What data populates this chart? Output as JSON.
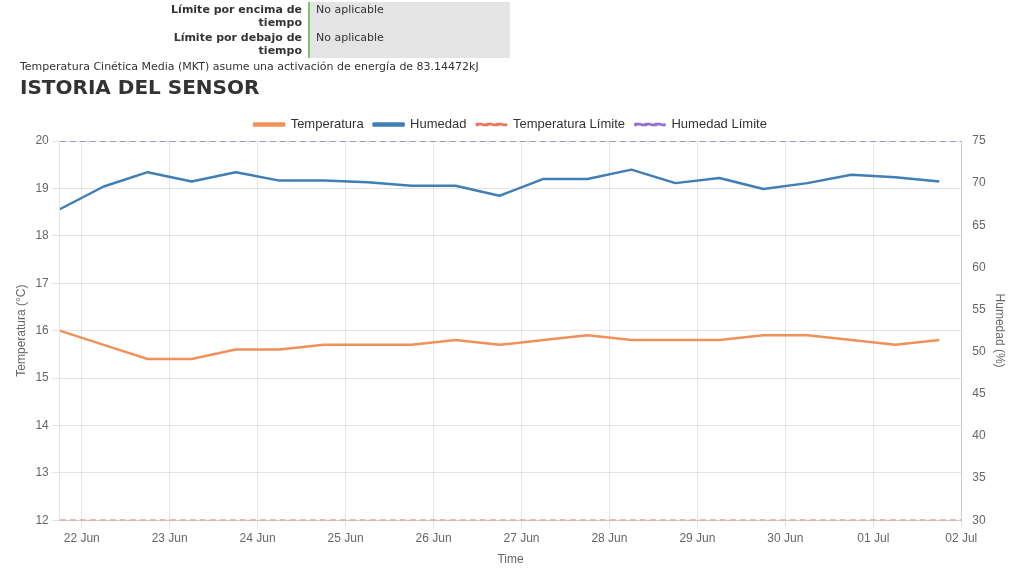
{
  "chart_data": {
    "type": "line",
    "title": "ISTORIA DEL SENSOR",
    "annotations": [
      "Límite por encima de tiempo",
      "No aplicable",
      "Límite por debajo de tiempo",
      "No aplicable",
      "Temperatura Cinética Media (MKT) asume una activación de energía de 83.14472kJ"
    ],
    "xlabel": "Time",
    "ylabel": "Temperatura (°C)",
    "y2label": "Humedad (%)",
    "x": [
      "--06-21T18:00",
      "--06-22T06:00",
      "--06-22T18:00",
      "--06-23T06:00",
      "--06-23T18:00",
      "--06-24T06:00",
      "--06-24T18:00",
      "--06-25T06:00",
      "--06-25T18:00",
      "--06-26T06:00",
      "--06-26T18:00",
      "--06-27T06:00",
      "--06-27T18:00",
      "--06-28T06:00",
      "--06-28T18:00",
      "--06-29T06:00",
      "--06-29T18:00",
      "--06-30T06:00",
      "--06-30T18:00",
      "--07-01T06:00",
      "--07-01T18:00"
    ],
    "series": [
      {
        "name": "Temperatura",
        "color": "#f0915a",
        "values": [
          16.0,
          15.7,
          15.4,
          15.4,
          15.6,
          15.6,
          15.7,
          15.7,
          15.7,
          15.8,
          15.7,
          15.8,
          15.9,
          15.8,
          15.8,
          15.8,
          15.9,
          15.9,
          15.8,
          15.7,
          15.8
        ]
      },
      {
        "name": "Humedad",
        "color": "#3f7fb5",
        "axis": "y2",
        "values": [
          66.9,
          69.6,
          71.3,
          70.2,
          71.3,
          70.3,
          70.3,
          70.1,
          69.7,
          69.7,
          68.5,
          70.5,
          70.5,
          71.6,
          70.0,
          70.6,
          69.3,
          70.0,
          71.0,
          70.7,
          70.2
        ]
      }
    ],
    "ref_lines": [
      {
        "axis": "y",
        "value": 12,
        "label": "Temperatura Límite",
        "color": "#e8735a",
        "line_style": "dashed"
      },
      {
        "axis": "y2",
        "value": 75,
        "label": "Humedad Límite",
        "color": "#8e6fd0",
        "line_style": "dashed"
      }
    ],
    "xlim": [
      "--06-21T18:00",
      "--07-02"
    ],
    "xticks": [
      {
        "value": "--06-22",
        "label": "22 Jun"
      },
      {
        "value": "--06-23",
        "label": "23 Jun"
      },
      {
        "value": "--06-24",
        "label": "24 Jun"
      },
      {
        "value": "--06-25",
        "label": "25 Jun"
      },
      {
        "value": "--06-26",
        "label": "26 Jun"
      },
      {
        "value": "--06-27",
        "label": "27 Jun"
      },
      {
        "value": "--06-28",
        "label": "28 Jun"
      },
      {
        "value": "--06-29",
        "label": "29 Jun"
      },
      {
        "value": "--06-30",
        "label": "30 Jun"
      },
      {
        "value": "--07-01",
        "label": "01 Jul"
      },
      {
        "value": "--07-02",
        "label": "02 Jul"
      }
    ],
    "ylim": [
      12,
      20
    ],
    "yticks": [
      12,
      13,
      14,
      15,
      16,
      17,
      18,
      19,
      20
    ],
    "y2lim": [
      30,
      75
    ],
    "y2ticks": [
      30,
      35,
      40,
      45,
      50,
      55,
      60,
      65,
      70,
      75
    ],
    "grid": true,
    "legend": "top",
    "marker": "none",
    "line_style": "solid"
  }
}
